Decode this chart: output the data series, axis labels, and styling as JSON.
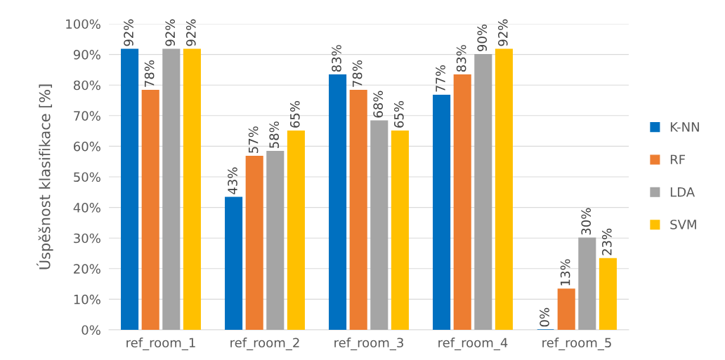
{
  "chart_data": {
    "type": "bar",
    "ylabel": "Úspěšnost klasifikace [%]",
    "categories": [
      "ref_room_1",
      "ref_room_2",
      "ref_room_3",
      "ref_room_4",
      "ref_room_5"
    ],
    "series": [
      {
        "name": "K-NN",
        "color": "#0070c0",
        "values": [
          91.7,
          43.3,
          83.3,
          76.7,
          0
        ],
        "value_labels": [
          "92%",
          "43%",
          "83%",
          "77%",
          "0%"
        ]
      },
      {
        "name": "RF",
        "color": "#ed7d31",
        "values": [
          78.3,
          56.7,
          78.3,
          83.3,
          13.3
        ],
        "value_labels": [
          "78%",
          "57%",
          "78%",
          "83%",
          "13%"
        ]
      },
      {
        "name": "LDA",
        "color": "#a5a5a5",
        "values": [
          91.7,
          58.3,
          68.3,
          90,
          30
        ],
        "value_labels": [
          "92%",
          "58%",
          "68%",
          "90%",
          "30%"
        ]
      },
      {
        "name": "SVM",
        "color": "#ffc000",
        "values": [
          91.7,
          65,
          65,
          91.7,
          23.3
        ],
        "value_labels": [
          "92%",
          "65%",
          "65%",
          "92%",
          "23%"
        ]
      }
    ],
    "ylim": [
      0,
      100
    ],
    "yticks": [
      {
        "value": 0,
        "label": "0%"
      },
      {
        "value": 10,
        "label": "10%"
      },
      {
        "value": 20,
        "label": "20%"
      },
      {
        "value": 30,
        "label": "30%"
      },
      {
        "value": 40,
        "label": "40%"
      },
      {
        "value": 50,
        "label": "50%"
      },
      {
        "value": 60,
        "label": "60%"
      },
      {
        "value": 70,
        "label": "70%"
      },
      {
        "value": 80,
        "label": "80%"
      },
      {
        "value": 90,
        "label": "90%"
      },
      {
        "value": 100,
        "label": "100%"
      }
    ],
    "grid": "y",
    "legend": "right"
  }
}
